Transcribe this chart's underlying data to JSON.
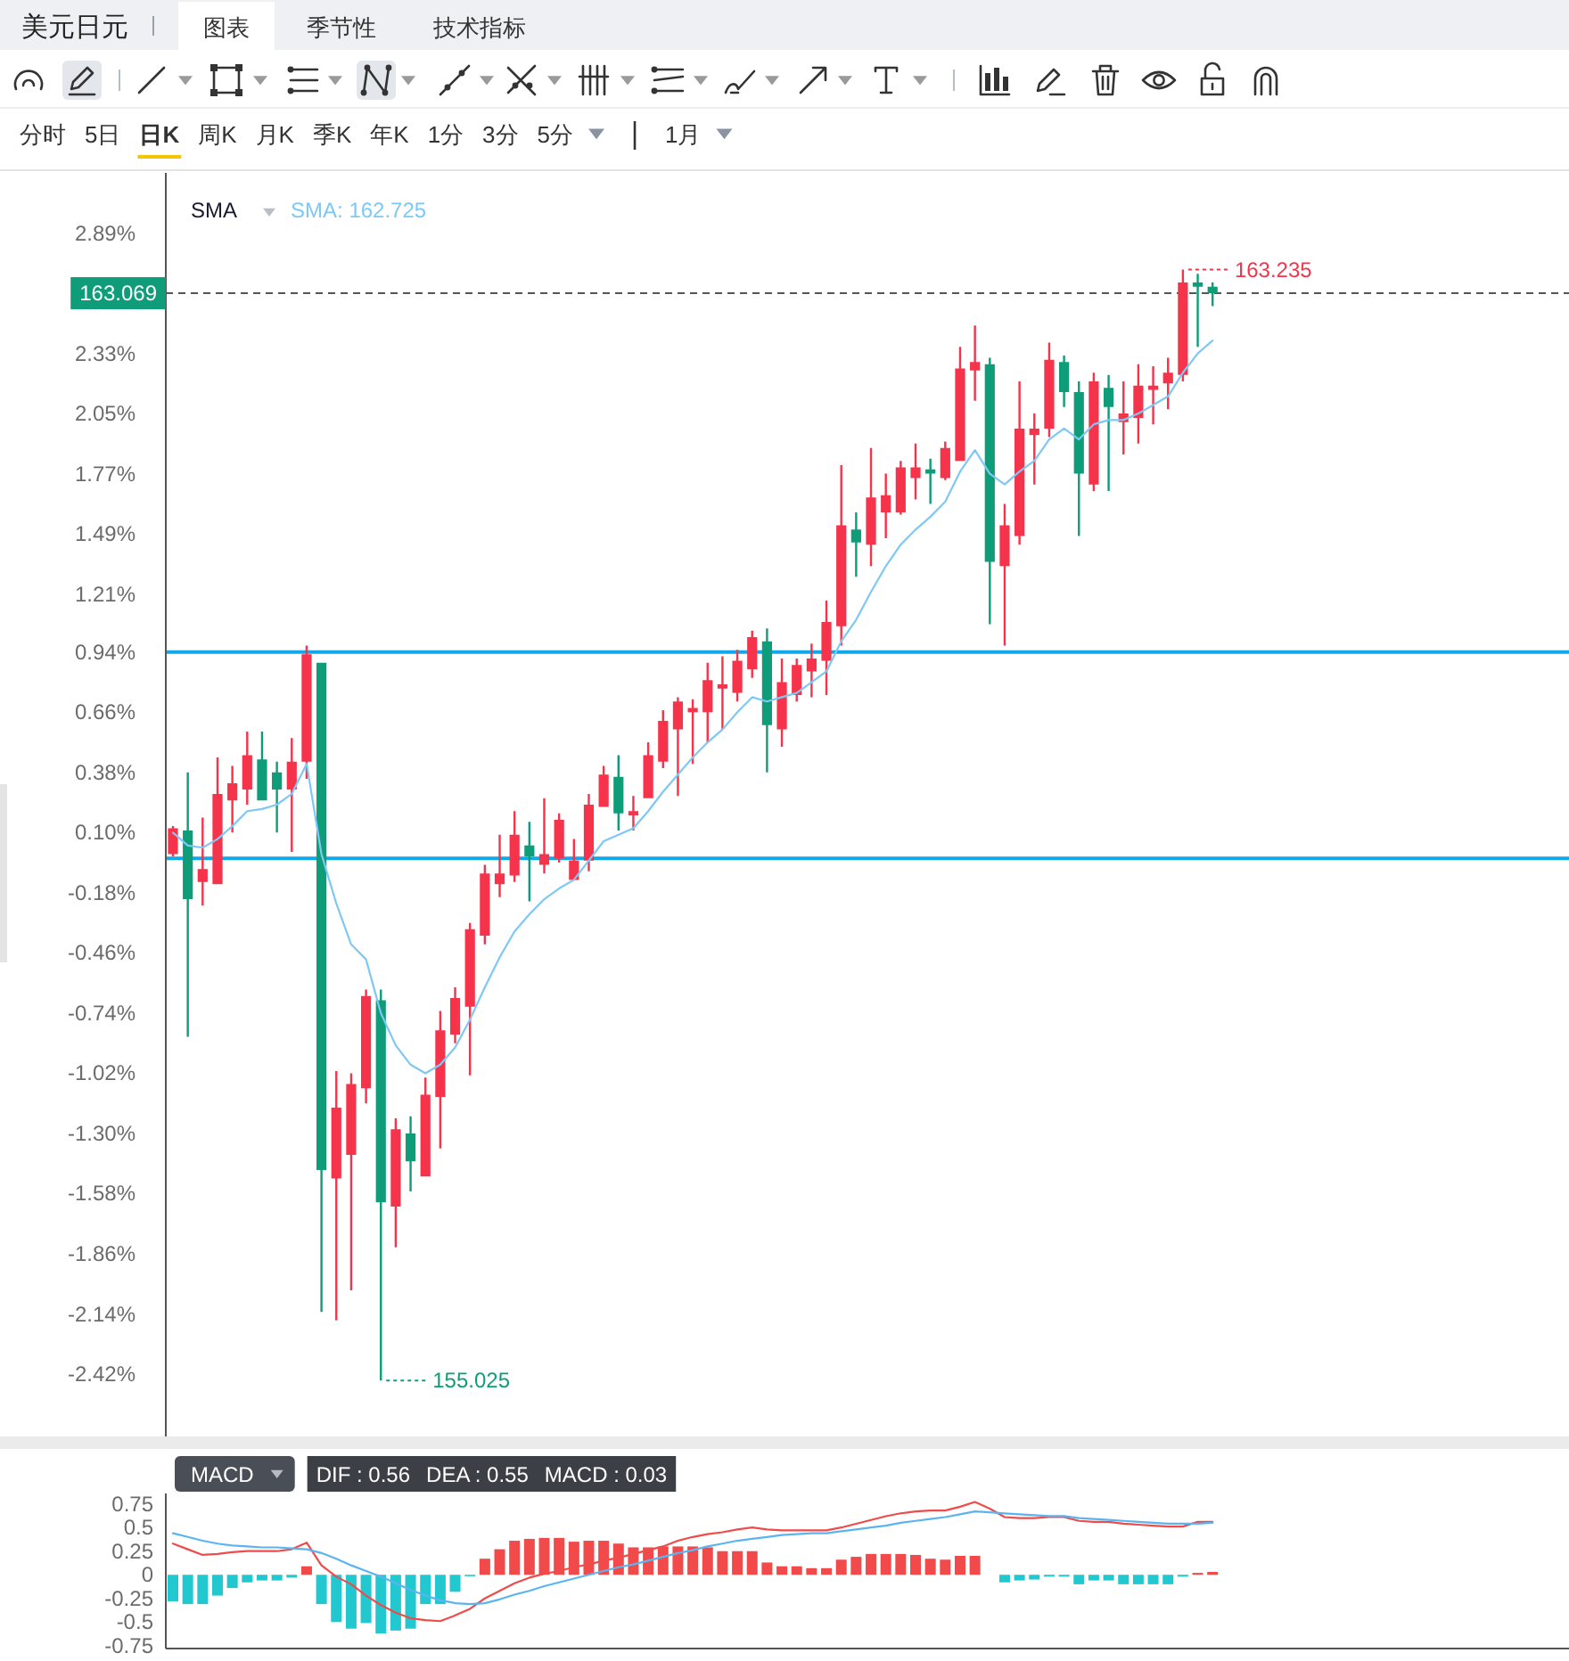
{
  "chart_data": [
    {
      "type": "other",
      "title": "美元日元",
      "annotations": [
        "图表",
        "季节性",
        "技术指标"
      ]
    },
    {
      "type": "other",
      "annotations": [
        "分时",
        "5日",
        "日K",
        "周K",
        "月K",
        "季K",
        "年K",
        "1分",
        "3分",
        "5分",
        "1月"
      ]
    },
    {
      "type": "candlestick",
      "categories": [
        null,
        null,
        null,
        null,
        null,
        null,
        null,
        null,
        null,
        null,
        null,
        null,
        null,
        null,
        null,
        null,
        null,
        null,
        null,
        null,
        null,
        null,
        null,
        null,
        null,
        null,
        null,
        null,
        null,
        null,
        null,
        null,
        null,
        null,
        null,
        null,
        null,
        null,
        null,
        null,
        null,
        null,
        null,
        null,
        null,
        null,
        null,
        null,
        null,
        null,
        null,
        null,
        null,
        null,
        null,
        null,
        null,
        null,
        null,
        null,
        null,
        null,
        null,
        null,
        null,
        null,
        null,
        null,
        null,
        null,
        null
      ],
      "ohlc": [
        [
          0.0,
          0.13,
          -0.01,
          0.12
        ],
        [
          0.11,
          0.38,
          -0.85,
          -0.21
        ],
        [
          -0.13,
          0.17,
          -0.24,
          -0.07
        ],
        [
          -0.14,
          0.45,
          -0.14,
          0.28
        ],
        [
          0.25,
          0.41,
          0.1,
          0.33
        ],
        [
          0.3,
          0.57,
          0.23,
          0.46
        ],
        [
          0.44,
          0.57,
          0.25,
          0.25
        ],
        [
          0.38,
          0.43,
          0.1,
          0.3
        ],
        [
          0.3,
          0.54,
          0.01,
          0.43
        ],
        [
          0.43,
          0.97,
          0.35,
          0.93
        ],
        [
          0.89,
          0.89,
          -2.13,
          -1.47
        ],
        [
          -1.51,
          -1.01,
          -2.17,
          -1.18
        ],
        [
          -1.4,
          -1.02,
          -2.03,
          -1.07
        ],
        [
          -1.09,
          -0.63,
          -1.16,
          -0.66
        ],
        [
          -0.68,
          -0.63,
          -2.45,
          -1.62
        ],
        [
          -1.64,
          -1.23,
          -1.83,
          -1.28
        ],
        [
          -1.3,
          -1.22,
          -1.57,
          -1.43
        ],
        [
          -1.5,
          -1.04,
          -1.5,
          -1.12
        ],
        [
          -1.13,
          -0.73,
          -1.37,
          -0.82
        ],
        [
          -0.84,
          -0.62,
          -0.88,
          -0.67
        ],
        [
          -0.71,
          -0.32,
          -1.03,
          -0.35
        ],
        [
          -0.38,
          -0.05,
          -0.42,
          -0.09
        ],
        [
          -0.14,
          0.09,
          -0.2,
          -0.09
        ],
        [
          -0.1,
          0.2,
          -0.13,
          0.09
        ],
        [
          0.04,
          0.15,
          -0.22,
          -0.01
        ],
        [
          -0.05,
          0.26,
          -0.09,
          0.0
        ],
        [
          -0.02,
          0.19,
          -0.04,
          0.16
        ],
        [
          -0.12,
          0.07,
          -0.12,
          -0.03
        ],
        [
          -0.03,
          0.28,
          -0.08,
          0.23
        ],
        [
          0.22,
          0.41,
          0.22,
          0.37
        ],
        [
          0.36,
          0.46,
          0.11,
          0.19
        ],
        [
          0.18,
          0.27,
          0.11,
          0.2
        ],
        [
          0.26,
          0.52,
          0.26,
          0.46
        ],
        [
          0.43,
          0.67,
          0.4,
          0.62
        ],
        [
          0.58,
          0.73,
          0.27,
          0.71
        ],
        [
          0.66,
          0.72,
          0.42,
          0.68
        ],
        [
          0.66,
          0.89,
          0.52,
          0.81
        ],
        [
          0.77,
          0.92,
          0.58,
          0.79
        ],
        [
          0.75,
          0.95,
          0.71,
          0.9
        ],
        [
          0.86,
          1.04,
          0.82,
          1.01
        ],
        [
          0.99,
          1.05,
          0.38,
          0.6
        ],
        [
          0.58,
          0.91,
          0.5,
          0.8
        ],
        [
          0.74,
          0.91,
          0.71,
          0.88
        ],
        [
          0.85,
          0.98,
          0.73,
          0.91
        ],
        [
          0.9,
          1.18,
          0.74,
          1.08
        ],
        [
          1.06,
          1.81,
          0.97,
          1.53
        ],
        [
          1.51,
          1.59,
          1.29,
          1.45
        ],
        [
          1.44,
          1.89,
          1.34,
          1.66
        ],
        [
          1.59,
          1.77,
          1.47,
          1.67
        ],
        [
          1.59,
          1.83,
          1.58,
          1.8
        ],
        [
          1.75,
          1.91,
          1.65,
          1.8
        ],
        [
          1.79,
          1.84,
          1.63,
          1.77
        ],
        [
          1.75,
          1.92,
          1.74,
          1.89
        ],
        [
          1.83,
          2.36,
          1.83,
          2.26
        ],
        [
          2.25,
          2.46,
          2.11,
          2.29
        ],
        [
          2.28,
          2.31,
          1.07,
          1.36
        ],
        [
          1.34,
          1.63,
          0.97,
          1.53
        ],
        [
          1.48,
          2.2,
          1.44,
          1.98
        ],
        [
          1.95,
          2.05,
          1.72,
          1.98
        ],
        [
          1.98,
          2.38,
          1.94,
          2.3
        ],
        [
          2.29,
          2.32,
          2.08,
          2.15
        ],
        [
          2.15,
          2.2,
          1.48,
          1.77
        ],
        [
          1.72,
          2.24,
          1.69,
          2.2
        ],
        [
          2.17,
          2.23,
          1.69,
          2.08
        ],
        [
          2.01,
          2.2,
          1.86,
          2.05
        ],
        [
          2.03,
          2.28,
          1.91,
          2.18
        ],
        [
          2.16,
          2.27,
          2.0,
          2.18
        ],
        [
          2.19,
          2.31,
          2.07,
          2.24
        ],
        [
          2.23,
          2.72,
          2.2,
          2.66
        ],
        [
          2.66,
          2.7,
          2.36,
          2.64
        ],
        [
          2.64,
          2.66,
          2.55,
          2.61
        ]
      ],
      "series": [
        {
          "type": "line",
          "color": "#7ec8f5",
          "values": [
            0.1,
            0.04,
            0.03,
            0.07,
            0.13,
            0.2,
            0.21,
            0.23,
            0.28,
            0.42,
            0.0,
            -0.23,
            -0.42,
            -0.49,
            -0.74,
            -0.89,
            -0.98,
            -1.02,
            -0.98,
            -0.9,
            -0.77,
            -0.62,
            -0.48,
            -0.36,
            -0.28,
            -0.21,
            -0.16,
            -0.12,
            -0.03,
            0.06,
            0.09,
            0.12,
            0.2,
            0.29,
            0.37,
            0.45,
            0.52,
            0.58,
            0.66,
            0.73,
            0.71,
            0.73,
            0.75,
            0.8,
            0.85,
            0.99,
            1.09,
            1.22,
            1.34,
            1.44,
            1.51,
            1.57,
            1.64,
            1.78,
            1.88,
            1.77,
            1.72,
            1.78,
            1.83,
            1.93,
            1.98,
            1.93,
            2.0,
            2.02,
            2.02,
            2.05,
            2.09,
            2.13,
            2.24,
            2.33,
            2.39
          ]
        }
      ],
      "ylim": [
        -2.71,
        3.17
      ],
      "yticks": [
        {
          "value": 2.89,
          "label": "2.89%"
        },
        {
          "value": 2.33,
          "label": "2.33%"
        },
        {
          "value": 2.05,
          "label": "2.05%"
        },
        {
          "value": 1.77,
          "label": "1.77%"
        },
        {
          "value": 1.49,
          "label": "1.49%"
        },
        {
          "value": 1.21,
          "label": "1.21%"
        },
        {
          "value": 0.94,
          "label": "0.94%"
        },
        {
          "value": 0.66,
          "label": "0.66%"
        },
        {
          "value": 0.38,
          "label": "0.38%"
        },
        {
          "value": 0.1,
          "label": "0.10%"
        },
        {
          "value": -0.18,
          "label": "-0.18%"
        },
        {
          "value": -0.46,
          "label": "-0.46%"
        },
        {
          "value": -0.74,
          "label": "-0.74%"
        },
        {
          "value": -1.02,
          "label": "-1.02%"
        },
        {
          "value": -1.3,
          "label": "-1.30%"
        },
        {
          "value": -1.58,
          "label": "-1.58%"
        },
        {
          "value": -1.86,
          "label": "-1.86%"
        },
        {
          "value": -2.14,
          "label": "-2.14%"
        },
        {
          "value": -2.42,
          "label": "-2.42%"
        }
      ],
      "tick_labels": "y",
      "ref_lines": [
        {
          "axis": "y",
          "value": 2.61,
          "color": "#555555",
          "line_style": "dashed"
        },
        {
          "axis": "y",
          "value": 0.94,
          "color": "#12a7e8"
        },
        {
          "axis": "y",
          "value": -0.02,
          "color": "#12a7e8"
        }
      ],
      "annotations": [
        "SMA",
        "SMA: 162.725",
        "163.069",
        "163.235",
        "155.025"
      ]
    },
    {
      "type": "bar",
      "title": "MACD",
      "categories": [
        null,
        null,
        null,
        null,
        null,
        null,
        null,
        null,
        null,
        null,
        null,
        null,
        null,
        null,
        null,
        null,
        null,
        null,
        null,
        null,
        null,
        null,
        null,
        null,
        null,
        null,
        null,
        null,
        null,
        null,
        null,
        null,
        null,
        null,
        null,
        null,
        null,
        null,
        null,
        null,
        null,
        null,
        null,
        null,
        null,
        null,
        null,
        null,
        null,
        null,
        null,
        null,
        null,
        null,
        null,
        null,
        null,
        null,
        null,
        null,
        null,
        null,
        null,
        null,
        null,
        null,
        null,
        null,
        null,
        null,
        null
      ],
      "series": [
        {
          "type": "bar",
          "values": [
            -0.28,
            -0.31,
            -0.31,
            -0.22,
            -0.14,
            -0.08,
            -0.06,
            -0.06,
            -0.03,
            0.09,
            -0.31,
            -0.5,
            -0.57,
            -0.51,
            -0.62,
            -0.59,
            -0.57,
            -0.31,
            -0.31,
            -0.18,
            -0.01,
            0.17,
            0.27,
            0.36,
            0.38,
            0.39,
            0.39,
            0.35,
            0.36,
            0.36,
            0.33,
            0.29,
            0.29,
            0.3,
            0.3,
            0.3,
            0.29,
            0.25,
            0.25,
            0.25,
            0.13,
            0.09,
            0.09,
            0.07,
            0.07,
            0.16,
            0.19,
            0.22,
            0.22,
            0.22,
            0.21,
            0.17,
            0.16,
            0.2,
            0.2,
            null,
            -0.08,
            -0.06,
            -0.05,
            -0.02,
            -0.02,
            -0.1,
            -0.06,
            -0.06,
            -0.1,
            -0.1,
            -0.1,
            -0.1,
            -0.02,
            0.02,
            0.03
          ],
          "colors": [
            "#22c8cf",
            "#22c8cf",
            "#22c8cf",
            "#22c8cf",
            "#22c8cf",
            "#22c8cf",
            "#22c8cf",
            "#22c8cf",
            "#22c8cf",
            "#f24a4a",
            "#22c8cf",
            "#22c8cf",
            "#22c8cf",
            "#22c8cf",
            "#22c8cf",
            "#22c8cf",
            "#22c8cf",
            "#22c8cf",
            "#22c8cf",
            "#22c8cf",
            "#22c8cf",
            "#f24a4a",
            "#f24a4a",
            "#f24a4a",
            "#f24a4a",
            "#f24a4a",
            "#f24a4a",
            "#f24a4a",
            "#f24a4a",
            "#f24a4a",
            "#f24a4a",
            "#f24a4a",
            "#f24a4a",
            "#f24a4a",
            "#f24a4a",
            "#f24a4a",
            "#f24a4a",
            "#f24a4a",
            "#f24a4a",
            "#f24a4a",
            "#f24a4a",
            "#f24a4a",
            "#f24a4a",
            "#f24a4a",
            "#f24a4a",
            "#f24a4a",
            "#f24a4a",
            "#f24a4a",
            "#f24a4a",
            "#f24a4a",
            "#f24a4a",
            "#f24a4a",
            "#f24a4a",
            "#f24a4a",
            "#f24a4a",
            null,
            "#22c8cf",
            "#22c8cf",
            "#22c8cf",
            "#22c8cf",
            "#22c8cf",
            "#22c8cf",
            "#22c8cf",
            "#22c8cf",
            "#22c8cf",
            "#22c8cf",
            "#22c8cf",
            "#22c8cf",
            "#22c8cf",
            "#f24a4a",
            "#f24a4a"
          ]
        },
        {
          "type": "line",
          "color": "#ef4b4b",
          "values": [
            0.33,
            0.27,
            0.21,
            0.22,
            0.24,
            0.25,
            0.25,
            0.25,
            0.27,
            0.34,
            0.1,
            -0.02,
            -0.1,
            -0.22,
            -0.32,
            -0.4,
            -0.46,
            -0.48,
            -0.49,
            -0.43,
            -0.36,
            -0.25,
            -0.17,
            -0.09,
            -0.03,
            0.01,
            0.04,
            0.08,
            0.11,
            0.15,
            0.18,
            0.22,
            0.26,
            0.3,
            0.36,
            0.4,
            0.43,
            0.45,
            0.48,
            0.5,
            0.48,
            0.47,
            0.47,
            0.47,
            0.47,
            0.5,
            0.54,
            0.58,
            0.62,
            0.65,
            0.67,
            0.68,
            0.68,
            0.72,
            0.77,
            0.7,
            0.61,
            0.6,
            0.6,
            0.61,
            0.61,
            0.57,
            0.56,
            0.56,
            0.54,
            0.53,
            0.52,
            0.51,
            0.51,
            0.56,
            0.56
          ]
        },
        {
          "type": "line",
          "color": "#5bb4f0",
          "values": [
            0.44,
            0.4,
            0.36,
            0.33,
            0.31,
            0.3,
            0.29,
            0.29,
            0.28,
            0.27,
            0.23,
            0.17,
            0.1,
            0.04,
            -0.02,
            -0.09,
            -0.16,
            -0.22,
            -0.27,
            -0.3,
            -0.31,
            -0.3,
            -0.26,
            -0.21,
            -0.17,
            -0.12,
            -0.08,
            -0.04,
            0.0,
            0.04,
            0.08,
            0.11,
            0.15,
            0.19,
            0.23,
            0.26,
            0.3,
            0.33,
            0.36,
            0.38,
            0.4,
            0.42,
            0.43,
            0.44,
            0.44,
            0.46,
            0.48,
            0.5,
            0.52,
            0.55,
            0.57,
            0.59,
            0.61,
            0.64,
            0.67,
            0.66,
            0.65,
            0.64,
            0.63,
            0.62,
            0.62,
            0.6,
            0.59,
            0.58,
            0.57,
            0.56,
            0.55,
            0.54,
            0.54,
            0.54,
            0.55
          ]
        }
      ],
      "ylim": [
        -0.78,
        0.86
      ],
      "yticks": [
        -0.75,
        -0.5,
        -0.25,
        0,
        0.25,
        0.5,
        0.75
      ],
      "tick_labels": "y",
      "annotations": [
        "DIF : 0.56",
        "DEA : 0.55",
        "MACD : 0.03"
      ]
    }
  ]
}
